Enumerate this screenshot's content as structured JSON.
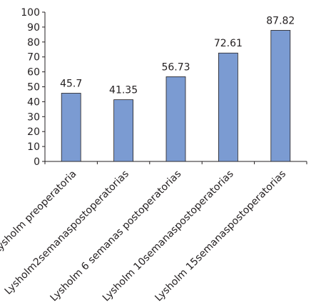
{
  "chart_data": {
    "type": "bar",
    "categories": [
      "Lysholm preoperatoria",
      "Lysholm2semanaspostoperatorias",
      "Lysholm 6 semanas postoperatorias",
      "Lysholm 10semanaspostoperatorias",
      "Lysholm 15semanaspostoperatorias"
    ],
    "values": [
      45.7,
      41.35,
      56.73,
      72.61,
      87.82
    ],
    "value_labels": [
      "45.7",
      "41.35",
      "56.73",
      "72.61",
      "87.82"
    ],
    "ylim": [
      0,
      100
    ],
    "yticks": [
      "0",
      "10",
      "20",
      "30",
      "40",
      "50",
      "60",
      "70",
      "80",
      "90",
      "100"
    ],
    "grid": false,
    "legend": "none",
    "bar_color": "#7b9bd2",
    "bar_edge_color": "#231f20",
    "axis_color": "#231f20"
  }
}
